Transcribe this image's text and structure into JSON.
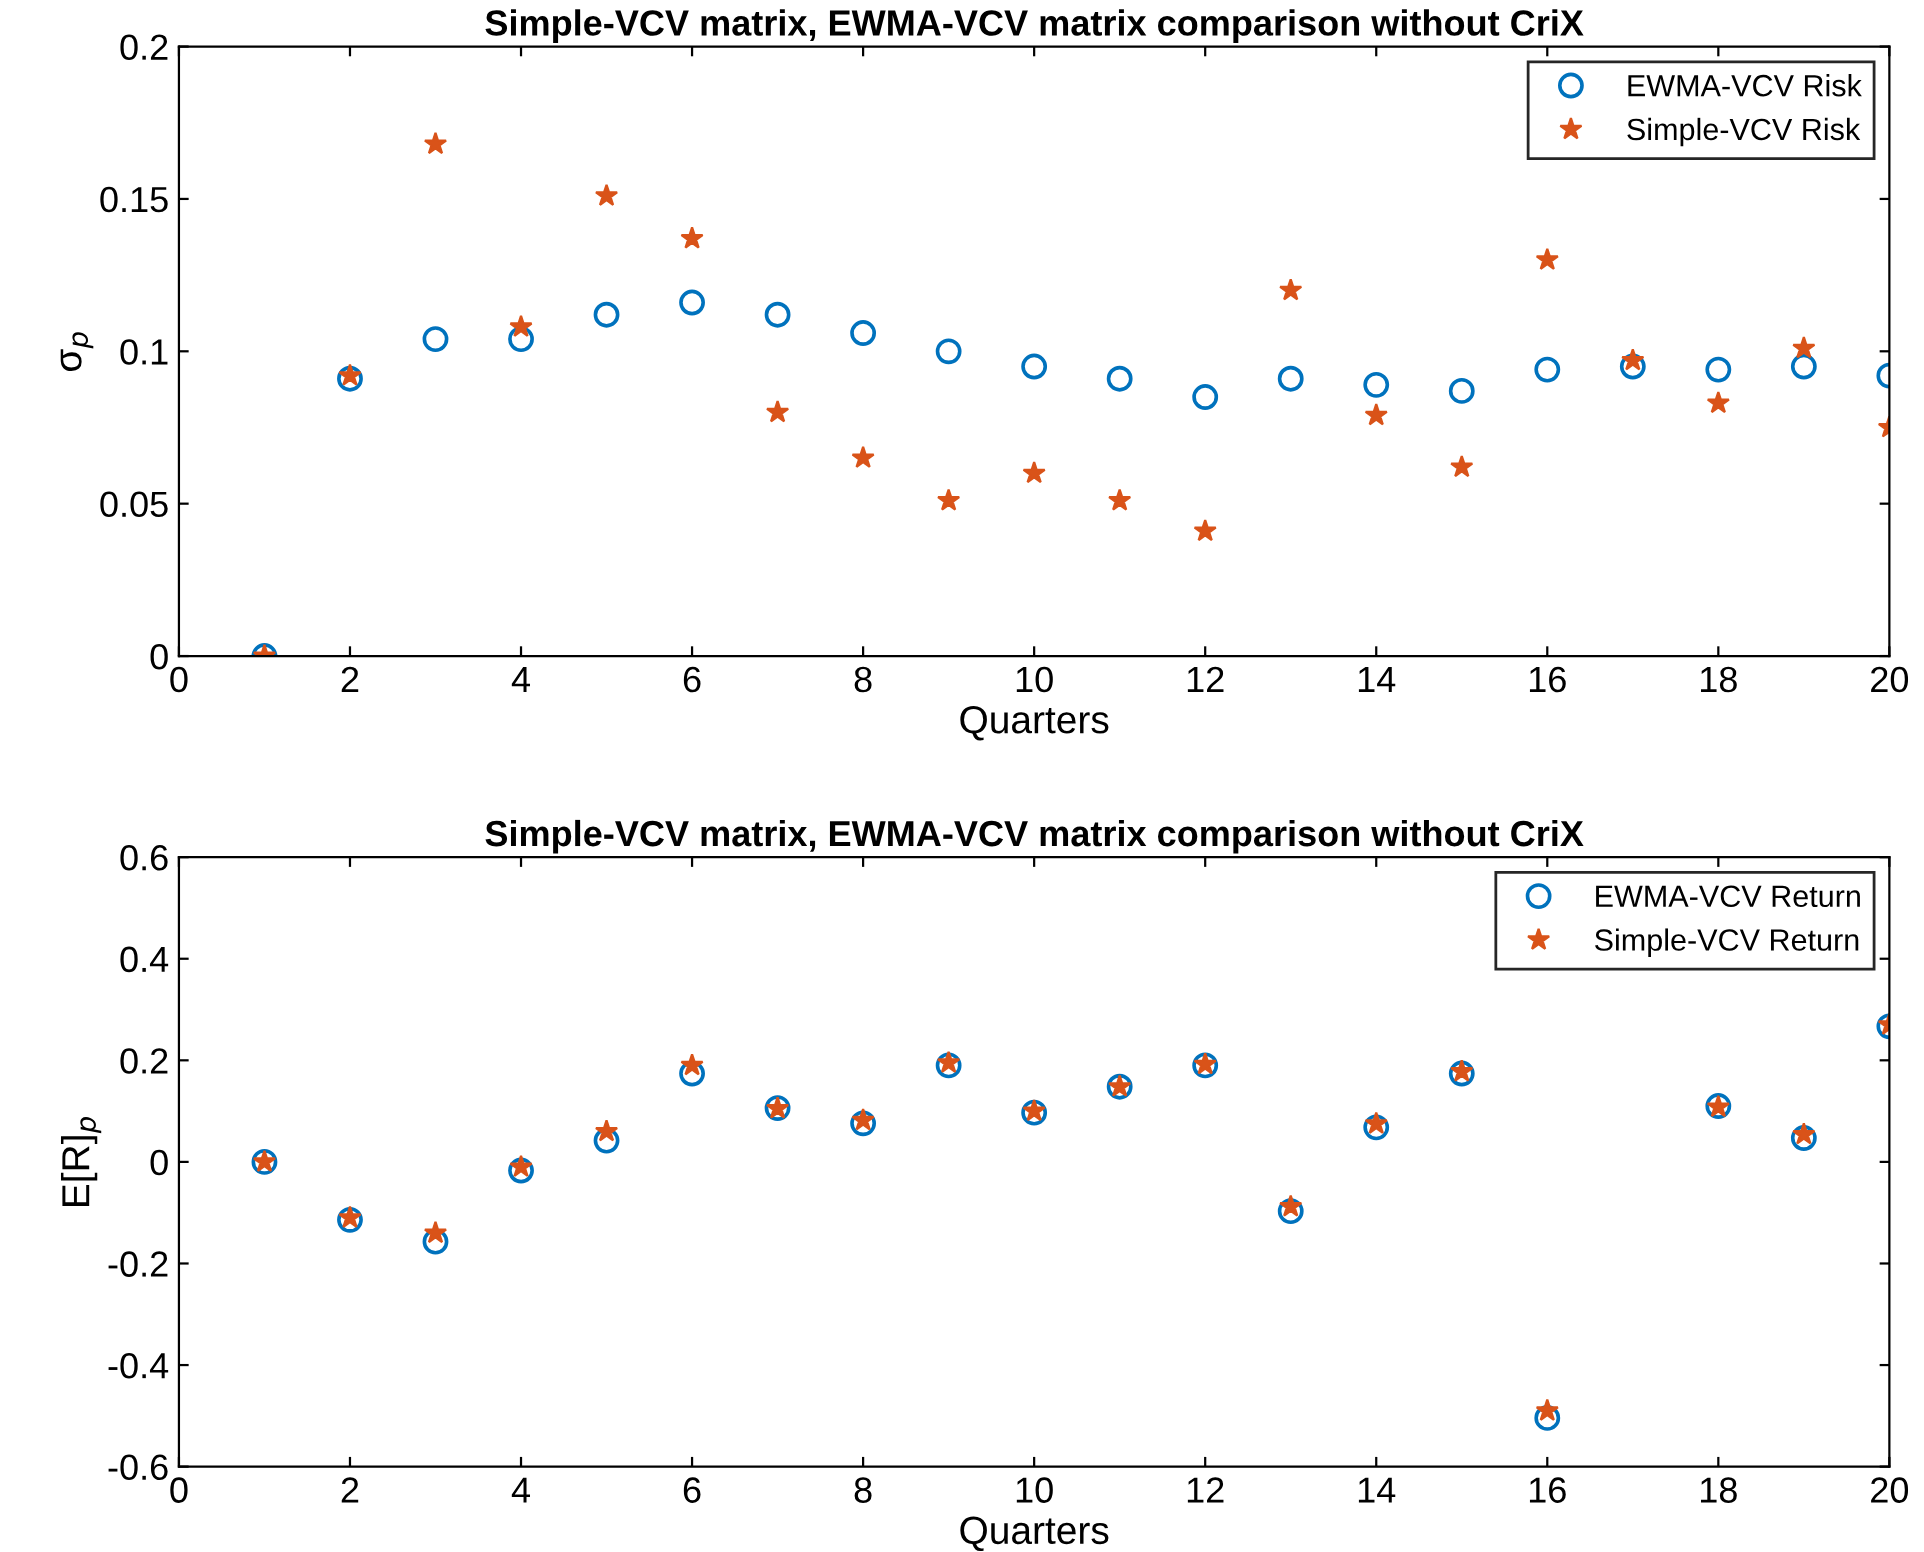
{
  "chart_data": [
    {
      "type": "scatter",
      "title": "Simple-VCV matrix, EWMA-VCV matrix comparison without CriX",
      "xlabel": "Quarters",
      "ylabel": "σ$_{p}$",
      "x": [
        1,
        2,
        3,
        4,
        5,
        6,
        7,
        8,
        9,
        10,
        11,
        12,
        13,
        14,
        15,
        16,
        17,
        18,
        19,
        20
      ],
      "series": [
        {
          "name": "EWMA-VCV Risk",
          "color": "#0072bd",
          "marker": "circle",
          "values": [
            0,
            0.091,
            0.104,
            0.104,
            0.112,
            0.116,
            0.112,
            0.106,
            0.1,
            0.095,
            0.091,
            0.085,
            0.091,
            0.089,
            0.087,
            0.094,
            0.095,
            0.094,
            0.095,
            0.092
          ]
        },
        {
          "name": "Simple-VCV Risk",
          "color": "#d95319",
          "marker": "star",
          "values": [
            0,
            0.092,
            0.168,
            0.108,
            0.151,
            0.137,
            0.08,
            0.065,
            0.051,
            0.06,
            0.051,
            0.041,
            0.12,
            0.079,
            0.062,
            0.13,
            0.097,
            0.083,
            0.101,
            0.075
          ]
        }
      ],
      "xlim": [
        0,
        20
      ],
      "xticks": [
        0,
        2,
        4,
        6,
        8,
        10,
        12,
        14,
        16,
        18,
        20
      ],
      "ylim": [
        0,
        0.2
      ],
      "yticks": [
        0,
        0.05,
        0.1,
        0.15,
        0.2
      ],
      "grid": false,
      "legend": "top right"
    },
    {
      "type": "scatter",
      "title": "Simple-VCV matrix, EWMA-VCV matrix comparison without CriX",
      "xlabel": "Quarters",
      "ylabel": "E[R]$_{p}$",
      "x": [
        1,
        2,
        3,
        4,
        5,
        6,
        7,
        8,
        9,
        10,
        11,
        12,
        13,
        14,
        15,
        16,
        17,
        18,
        19,
        20
      ],
      "series": [
        {
          "name": "EWMA-VCV Return",
          "color": "#0072bd",
          "marker": "circle",
          "values": [
            0,
            -0.114,
            -0.157,
            -0.017,
            0.042,
            0.174,
            0.106,
            0.076,
            0.19,
            0.097,
            0.148,
            0.19,
            -0.097,
            0.068,
            0.174,
            -0.504,
            null,
            0.11,
            0.047,
            0.267
          ]
        },
        {
          "name": "Simple-VCV Return",
          "color": "#d95319",
          "marker": "star",
          "values": [
            0,
            -0.11,
            -0.14,
            -0.01,
            0.06,
            0.19,
            0.105,
            0.082,
            0.195,
            0.1,
            0.148,
            0.192,
            -0.088,
            0.075,
            0.178,
            -0.49,
            null,
            0.108,
            0.054,
            0.27
          ]
        }
      ],
      "xlim": [
        0,
        20
      ],
      "xticks": [
        0,
        2,
        4,
        6,
        8,
        10,
        12,
        14,
        16,
        18,
        20
      ],
      "ylim": [
        -0.6,
        0.6
      ],
      "yticks": [
        {
          "value": -0.6,
          "label": "-0.6"
        },
        {
          "value": -0.4,
          "label": "-0.4"
        },
        {
          "value": -0.2,
          "label": "-0.2"
        },
        0,
        0.2,
        0.4,
        0.6
      ],
      "grid": false,
      "legend": "top right"
    }
  ]
}
